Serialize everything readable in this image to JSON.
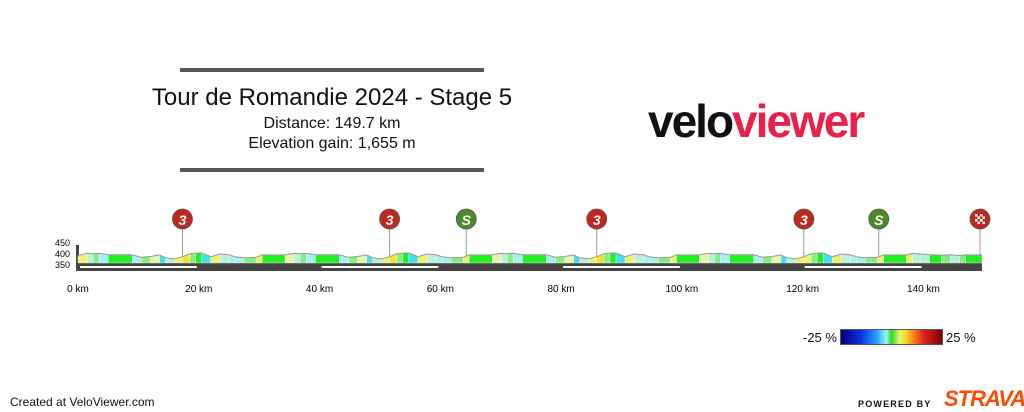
{
  "header": {
    "title": "Tour de Romandie 2024 - Stage 5",
    "distance": "Distance: 149.7 km",
    "elevation_gain": "Elevation gain: 1,655 m"
  },
  "logo": {
    "part1": "velo",
    "part2": "viewer",
    "color": "#e8204a"
  },
  "legend": {
    "min_label": "-25 %",
    "max_label": "25 %"
  },
  "footer": {
    "created": "Created at VeloViewer.com",
    "powered_by": "POWERED BY",
    "strava": "STRAVA"
  },
  "chart_data": {
    "type": "area",
    "xlabel": "",
    "ylabel": "",
    "xlim": [
      0,
      149.7
    ],
    "ylim": [
      350,
      450
    ],
    "x_ticks": [
      {
        "v": 0,
        "label": "0 km"
      },
      {
        "v": 20,
        "label": "20 km"
      },
      {
        "v": 40,
        "label": "40 km"
      },
      {
        "v": 60,
        "label": "60 km"
      },
      {
        "v": 80,
        "label": "80 km"
      },
      {
        "v": 100,
        "label": "100 km"
      },
      {
        "v": 120,
        "label": "120 km"
      },
      {
        "v": 140,
        "label": "140 km"
      }
    ],
    "y_ticks": [
      {
        "v": 450,
        "label": "450"
      },
      {
        "v": 400,
        "label": "400"
      },
      {
        "v": 350,
        "label": "350"
      }
    ],
    "color_scale": "gradient percent, -25 % to 25 %",
    "markers": [
      {
        "km": 17.3,
        "type": "climb",
        "label": "3",
        "color": "#c0281e"
      },
      {
        "km": 51.6,
        "type": "climb",
        "label": "3",
        "color": "#c0281e"
      },
      {
        "km": 64.3,
        "type": "sprint",
        "label": "S",
        "color": "#4d8a2a"
      },
      {
        "km": 85.9,
        "type": "climb",
        "label": "3",
        "color": "#c0281e"
      },
      {
        "km": 120.2,
        "type": "climb",
        "label": "3",
        "color": "#c0281e"
      },
      {
        "km": 132.6,
        "type": "sprint",
        "label": "S",
        "color": "#4d8a2a"
      },
      {
        "km": 149.7,
        "type": "finish",
        "label": "",
        "color": "#c0281e"
      }
    ],
    "elevation": [
      [
        0,
        400
      ],
      [
        1.5,
        415
      ],
      [
        2.5,
        412
      ],
      [
        3.5,
        414
      ],
      [
        5,
        405
      ],
      [
        9,
        405
      ],
      [
        10.5,
        388
      ],
      [
        12,
        393
      ],
      [
        13.5,
        404
      ],
      [
        14.5,
        384
      ],
      [
        16,
        378
      ],
      [
        17.3,
        392
      ],
      [
        18.5,
        412
      ],
      [
        19.5,
        416
      ],
      [
        20.5,
        417
      ],
      [
        22,
        392
      ],
      [
        23.5,
        410
      ],
      [
        25,
        405
      ],
      [
        26,
        392
      ],
      [
        27.5,
        384
      ],
      [
        29.5,
        388
      ],
      [
        30.5,
        404
      ],
      [
        34.3,
        404
      ],
      [
        35.8,
        415
      ],
      [
        36.8,
        412
      ],
      [
        37.8,
        414
      ],
      [
        39.3,
        405
      ],
      [
        43.3,
        405
      ],
      [
        44.8,
        388
      ],
      [
        46.3,
        393
      ],
      [
        47.8,
        404
      ],
      [
        48.8,
        384
      ],
      [
        50.3,
        378
      ],
      [
        51.6,
        392
      ],
      [
        52.8,
        412
      ],
      [
        53.8,
        416
      ],
      [
        54.8,
        417
      ],
      [
        56.3,
        392
      ],
      [
        57.8,
        410
      ],
      [
        59.3,
        405
      ],
      [
        60.3,
        392
      ],
      [
        61.8,
        384
      ],
      [
        63.8,
        388
      ],
      [
        64.8,
        404
      ],
      [
        68.6,
        404
      ],
      [
        70.1,
        415
      ],
      [
        71.1,
        412
      ],
      [
        72.1,
        414
      ],
      [
        73.6,
        405
      ],
      [
        77.6,
        405
      ],
      [
        79.1,
        388
      ],
      [
        80.6,
        393
      ],
      [
        82.1,
        404
      ],
      [
        83.1,
        384
      ],
      [
        84.6,
        378
      ],
      [
        85.9,
        392
      ],
      [
        87.1,
        412
      ],
      [
        88.1,
        416
      ],
      [
        89.1,
        417
      ],
      [
        90.6,
        392
      ],
      [
        92.1,
        410
      ],
      [
        93.6,
        405
      ],
      [
        94.6,
        392
      ],
      [
        96.1,
        384
      ],
      [
        98.1,
        388
      ],
      [
        99.1,
        404
      ],
      [
        102.9,
        404
      ],
      [
        104.4,
        415
      ],
      [
        105.4,
        412
      ],
      [
        106.4,
        414
      ],
      [
        107.9,
        405
      ],
      [
        111.9,
        405
      ],
      [
        113.4,
        388
      ],
      [
        114.9,
        393
      ],
      [
        116.4,
        404
      ],
      [
        117.4,
        384
      ],
      [
        118.9,
        378
      ],
      [
        120.2,
        392
      ],
      [
        121.4,
        412
      ],
      [
        122.4,
        416
      ],
      [
        123.4,
        417
      ],
      [
        124.9,
        392
      ],
      [
        126.4,
        410
      ],
      [
        127.9,
        405
      ],
      [
        128.9,
        392
      ],
      [
        130.4,
        384
      ],
      [
        132.4,
        388
      ],
      [
        133.4,
        404
      ],
      [
        137.2,
        404
      ],
      [
        138.2,
        414
      ],
      [
        139.5,
        410
      ],
      [
        141,
        405
      ],
      [
        143,
        402
      ],
      [
        144.5,
        405
      ],
      [
        146,
        400
      ],
      [
        147,
        404
      ],
      [
        149.7,
        404
      ]
    ]
  }
}
